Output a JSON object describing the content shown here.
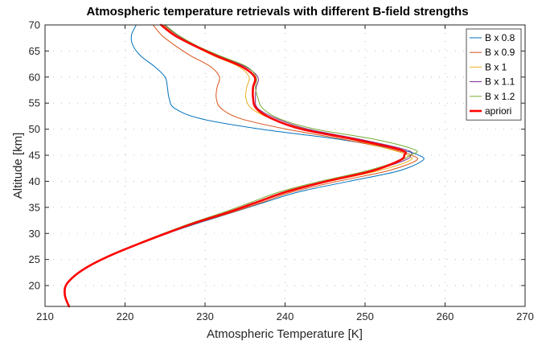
{
  "chart_data": {
    "type": "line",
    "title": "Atmospheric temperature retrievals with different B-field strengths",
    "xlabel": "Atmospheric Temperature [K]",
    "ylabel": "Altitude [km]",
    "xlim": [
      210,
      270
    ],
    "ylim": [
      16,
      70
    ],
    "xticks": [
      210,
      220,
      230,
      240,
      250,
      260,
      270
    ],
    "yticks": [
      20,
      25,
      30,
      35,
      40,
      45,
      50,
      55,
      60,
      65,
      70
    ],
    "grid": "dotted",
    "legend_position": "top-right",
    "y": [
      16,
      18,
      20,
      22,
      24,
      26,
      28,
      30,
      32,
      34,
      36,
      38,
      40,
      42,
      44,
      45,
      46,
      48,
      50,
      52,
      54,
      56,
      58,
      60,
      62,
      64,
      66,
      68,
      70
    ],
    "series": [
      {
        "name": "B x 0.8",
        "color": "#0072BD",
        "width": 1,
        "x": [
          213.0,
          212.5,
          212.6,
          213.8,
          215.8,
          218.5,
          221.8,
          225.3,
          229.2,
          233.4,
          237.5,
          241.8,
          248.0,
          254.2,
          257.2,
          256.7,
          254.5,
          247.0,
          237.0,
          229.5,
          226.2,
          225.5,
          225.3,
          225.0,
          223.7,
          222.0,
          221.0,
          220.8,
          221.4
        ]
      },
      {
        "name": "B x 0.9",
        "color": "#D95319",
        "width": 1,
        "x": [
          213.0,
          212.5,
          212.6,
          213.8,
          215.8,
          218.5,
          221.8,
          225.2,
          229.0,
          233.3,
          237.2,
          241.0,
          246.6,
          252.8,
          256.4,
          255.8,
          253.7,
          247.5,
          240.2,
          234.5,
          232.0,
          231.4,
          231.5,
          231.8,
          230.7,
          228.3,
          226.3,
          224.6,
          223.5
        ]
      },
      {
        "name": "B x 1",
        "color": "#EDB120",
        "width": 1,
        "x": [
          213.0,
          212.5,
          212.6,
          213.8,
          215.8,
          218.5,
          221.7,
          225.1,
          228.8,
          232.9,
          236.6,
          240.3,
          245.6,
          251.6,
          255.6,
          255.3,
          253.4,
          248.4,
          242.6,
          238.3,
          235.8,
          235.1,
          235.2,
          235.5,
          234.2,
          231.2,
          228.6,
          226.4,
          224.8
        ]
      },
      {
        "name": "B x 1.1",
        "color": "#7E2F8E",
        "width": 1,
        "x": [
          213.0,
          212.5,
          212.6,
          213.8,
          215.8,
          218.4,
          221.6,
          225.0,
          228.6,
          232.6,
          236.3,
          240.0,
          245.0,
          250.8,
          254.9,
          255.7,
          255.2,
          249.6,
          242.9,
          239.0,
          236.6,
          236.3,
          236.4,
          236.6,
          235.0,
          231.8,
          228.9,
          226.6,
          224.9
        ]
      },
      {
        "name": "B x 1.2",
        "color": "#77AC30",
        "width": 1,
        "x": [
          213.0,
          212.5,
          212.6,
          213.8,
          215.8,
          218.3,
          221.5,
          224.8,
          228.3,
          232.2,
          235.8,
          239.4,
          244.4,
          250.2,
          254.4,
          255.6,
          256.3,
          251.4,
          243.8,
          239.3,
          237.2,
          236.6,
          236.3,
          236.4,
          235.2,
          232.0,
          229.0,
          226.7,
          225.0
        ]
      },
      {
        "name": "apriori",
        "color": "#FF0000",
        "width": 2.6,
        "x": [
          213.0,
          212.5,
          212.6,
          213.8,
          215.8,
          218.5,
          221.7,
          225.1,
          228.7,
          232.8,
          236.5,
          240.2,
          245.2,
          250.9,
          254.3,
          254.9,
          254.5,
          248.8,
          242.1,
          238.4,
          236.4,
          236.0,
          236.0,
          236.2,
          234.6,
          231.5,
          228.7,
          226.2,
          224.5
        ]
      }
    ]
  }
}
